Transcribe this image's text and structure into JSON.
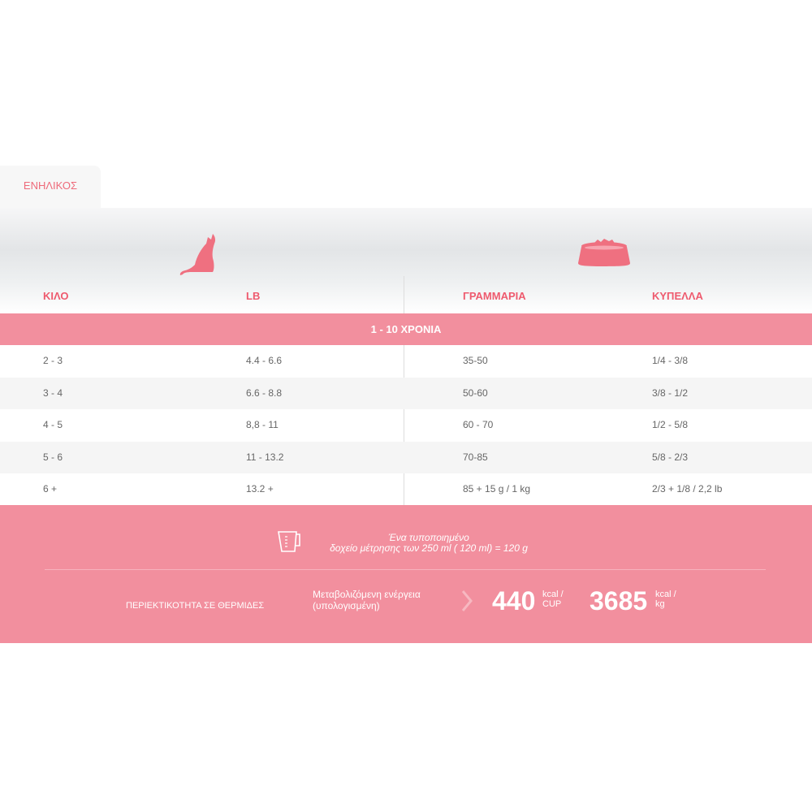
{
  "tab": {
    "label": "ΕΝΗΛΙΚΟΣ"
  },
  "icons": {
    "cat": "cat-icon",
    "bowl": "food-bowl-icon",
    "cup": "measuring-cup-icon",
    "chevron": "chevron-right-icon"
  },
  "colors": {
    "accent": "#f28f9e",
    "heading": "#ee5a6e"
  },
  "columns": [
    "ΚΙΛΟ",
    "LB",
    "ΓΡΑΜΜΑΡΙΑ",
    "ΚΥΠΕΛΛΑ"
  ],
  "age_group": "1 - 10 ΧΡΟΝΙΑ",
  "rows": [
    [
      "2 - 3",
      "4.4 - 6.6",
      "35-50",
      "1/4 - 3/8"
    ],
    [
      "3 - 4",
      "6.6 - 8.8",
      "50-60",
      "3/8 - 1/2"
    ],
    [
      "4 - 5",
      "8,8 - 11",
      "60 - 70",
      "1/2 - 5/8"
    ],
    [
      "5 - 6",
      "11 - 13.2",
      "70-85",
      "5/8 - 2/3"
    ],
    [
      "6 +",
      "13.2 +",
      "85 + 15 g / 1 kg",
      "2/3 + 1/8 / 2,2 lb"
    ]
  ],
  "cup_note": {
    "line1": "Ένα τυποποιημένο",
    "line2": "δοχείο μέτρησης των 250 ml ( 120 ml) = 120 g"
  },
  "calories": {
    "label": "ΠΕΡΙΕΚΤΙΚΟΤΗΤΑ ΣΕ ΘΕΡΜΙΔΕΣ",
    "energy_line1": "Μεταβολιζόμενη ενέργεια",
    "energy_line2": "(υπολογισμένη)",
    "value1": "440",
    "unit1a": "kcal /",
    "unit1b": "CUP",
    "value2": "3685",
    "unit2a": "kcal /",
    "unit2b": "kg"
  }
}
